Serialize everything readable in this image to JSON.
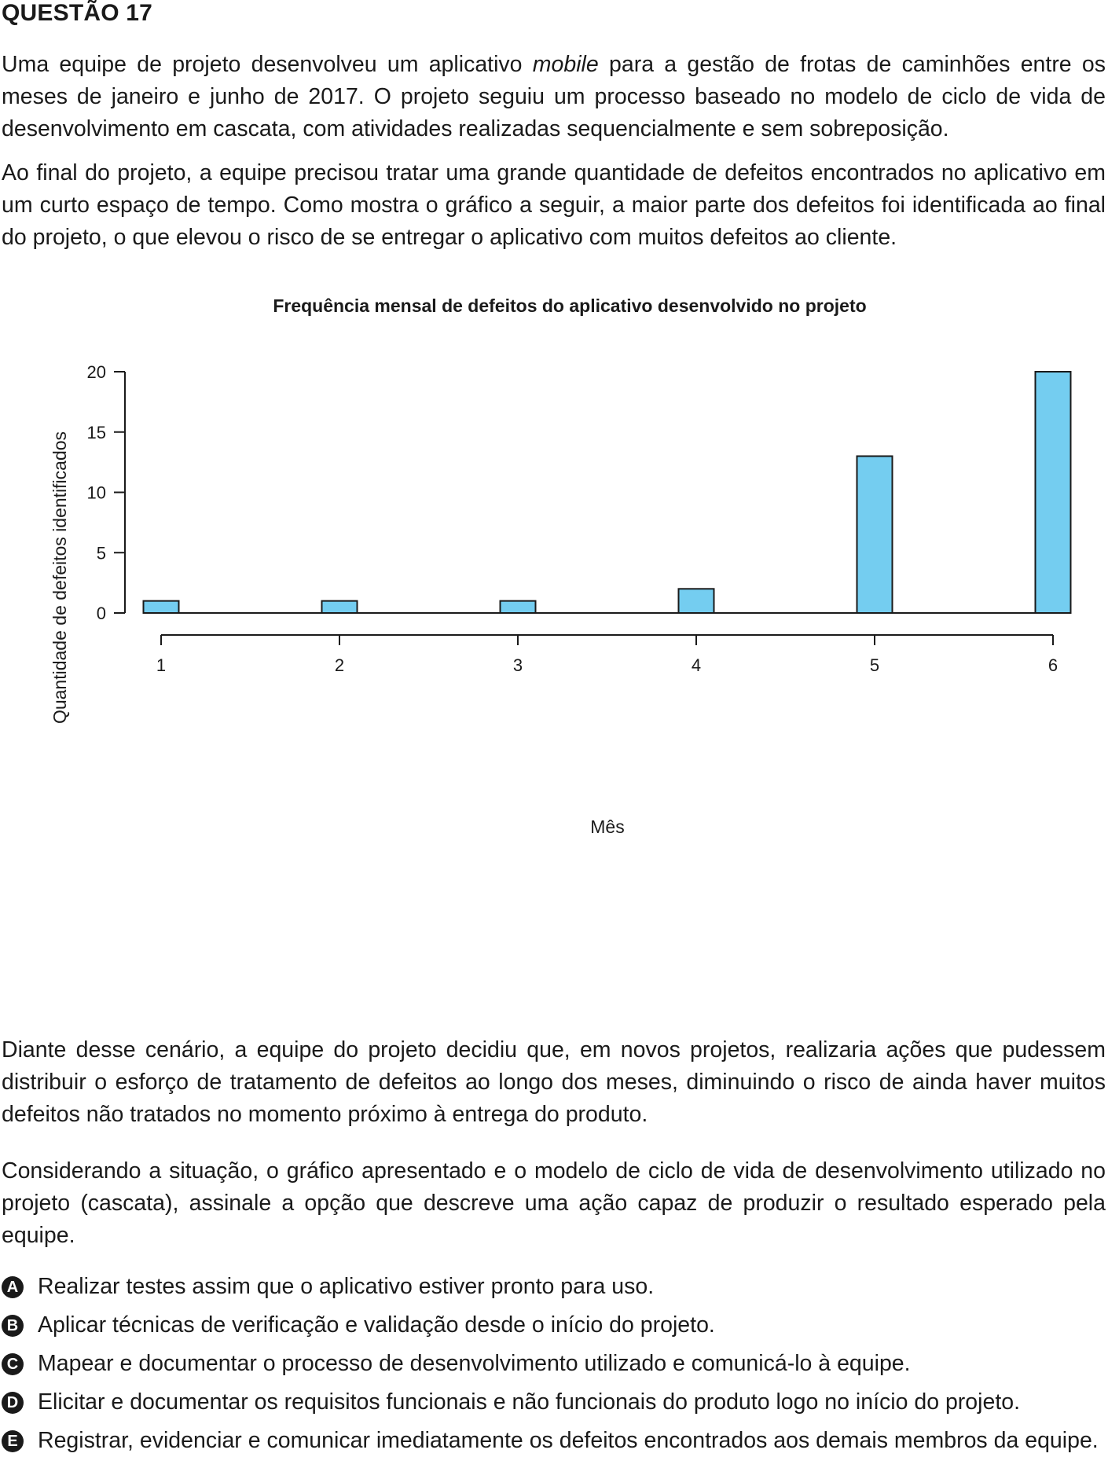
{
  "question": {
    "title": "QUESTÃO 17",
    "p1_a": "Uma equipe de projeto desenvolveu um aplicativo ",
    "p1_italic": "mobile",
    "p1_b": " para a gestão de frotas de caminhões entre os meses de janeiro e junho de 2017. O projeto seguiu um processo baseado no modelo de ciclo de vida de desenvolvimento em cascata, com atividades realizadas sequencialmente e sem sobreposição.",
    "p2": "Ao final do projeto, a equipe precisou tratar uma grande quantidade de defeitos encontrados no aplicativo em um curto espaço de tempo. Como mostra o gráfico a seguir, a maior parte dos defeitos foi identificada ao final do projeto, o que elevou o risco de se entregar o aplicativo com muitos defeitos ao cliente.",
    "p3": "Diante desse cenário, a equipe do projeto decidiu que, em novos projetos, realizaria ações que pudessem distribuir o esforço de tratamento de defeitos ao longo dos meses, diminuindo o risco de ainda haver muitos defeitos não tratados no momento próximo à entrega do produto.",
    "p4": "Considerando a situação, o gráfico apresentado e o modelo de ciclo de vida de desenvolvimento utilizado no projeto (cascata), assinale a opção que descreve uma ação capaz de produzir o resultado esperado pela equipe."
  },
  "chart_data": {
    "type": "bar",
    "title": "Frequência mensal de defeitos do aplicativo desenvolvido no projeto",
    "xlabel": "Mês",
    "ylabel": "Quantidade de defeitos identificados",
    "categories": [
      "1",
      "2",
      "3",
      "4",
      "5",
      "6"
    ],
    "values": [
      1,
      1,
      1,
      2,
      13,
      20
    ],
    "ylim": [
      0,
      20
    ],
    "yticks": [
      0,
      5,
      10,
      15,
      20
    ],
    "bar_color": "#74cdf0",
    "grid": false
  },
  "options": [
    {
      "letter": "A",
      "text": "Realizar testes assim que o aplicativo estiver pronto para uso."
    },
    {
      "letter": "B",
      "text": "Aplicar técnicas de verificação e validação desde o início do projeto."
    },
    {
      "letter": "C",
      "text": "Mapear e documentar o processo de desenvolvimento utilizado e comunicá-lo à equipe."
    },
    {
      "letter": "D",
      "text": "Elicitar e documentar os requisitos funcionais e não funcionais do produto logo no início do projeto."
    },
    {
      "letter": "E",
      "text": "Registrar, evidenciar e comunicar imediatamente os defeitos encontrados aos demais membros da equipe."
    }
  ]
}
